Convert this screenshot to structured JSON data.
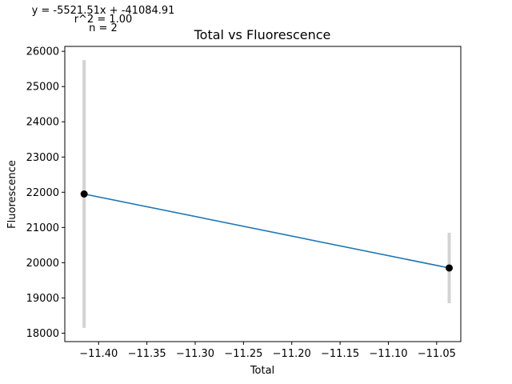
{
  "chart_data": {
    "type": "scatter",
    "title": "Total vs Fluorescence",
    "xlabel": "Total",
    "ylabel": "Fluorescence",
    "xlim": [
      -11.435,
      -11.025
    ],
    "ylim": [
      17760,
      26140
    ],
    "xticks": [
      -11.4,
      -11.35,
      -11.3,
      -11.25,
      -11.2,
      -11.15,
      -11.1,
      -11.05
    ],
    "xtick_labels": [
      "−11.40",
      "−11.35",
      "−11.30",
      "−11.25",
      "−11.20",
      "−11.15",
      "−11.10",
      "−11.05"
    ],
    "yticks": [
      18000,
      19000,
      20000,
      21000,
      22000,
      23000,
      24000,
      25000,
      26000
    ],
    "ytick_labels": [
      "18000",
      "19000",
      "20000",
      "21000",
      "22000",
      "23000",
      "24000",
      "25000",
      "26000"
    ],
    "grid": false,
    "points": [
      {
        "x": -11.415,
        "y": 21950,
        "err_low": 18150,
        "err_high": 25750
      },
      {
        "x": -11.037,
        "y": 19850,
        "err_low": 18850,
        "err_high": 20850
      }
    ],
    "fit_line": {
      "x": [
        -11.415,
        -11.037
      ],
      "y": [
        21950,
        19850
      ]
    },
    "annotations": {
      "equation": "y = -5521.51x + -41084.91",
      "r2": "r^2 = 1.00",
      "n": "n = 2"
    },
    "colors": {
      "line": "#1f77b4",
      "point": "#000000",
      "errorbar": "#d3d3d3"
    }
  }
}
